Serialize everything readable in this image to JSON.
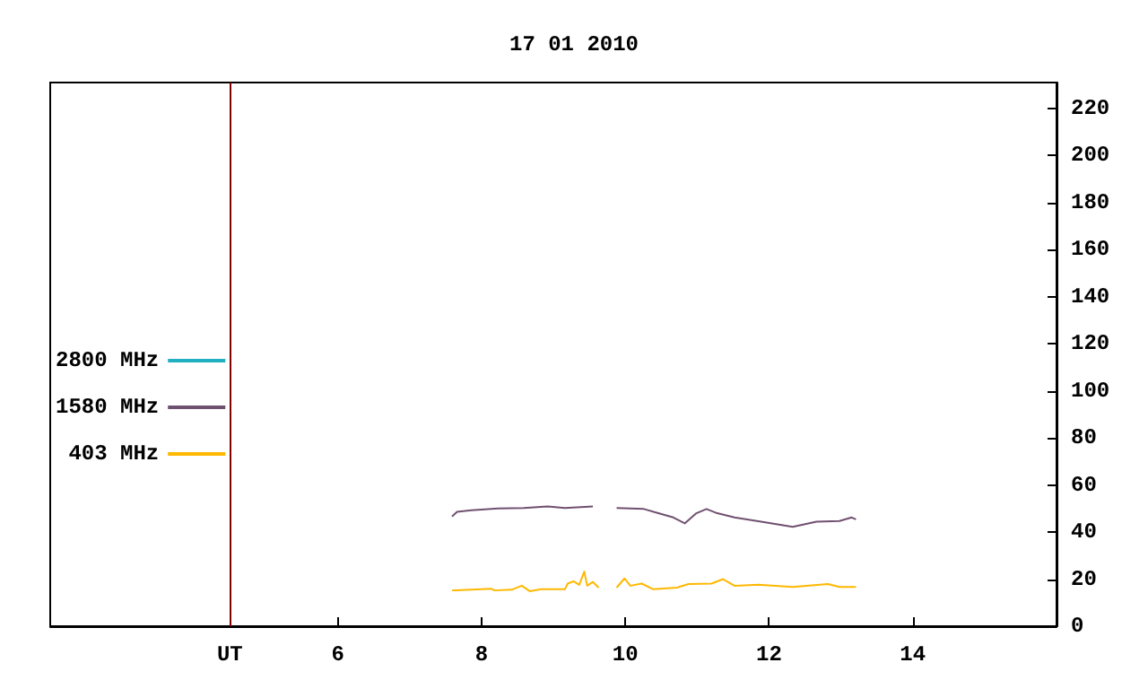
{
  "chart_data": {
    "type": "line",
    "title": "17 01 2010",
    "xlim": [
      2,
      16
    ],
    "xticks": [
      {
        "value": 4.5,
        "label": "UT"
      },
      6,
      8,
      10,
      12,
      14
    ],
    "ylim": [
      0,
      231
    ],
    "yticks": [
      0,
      20,
      40,
      60,
      80,
      100,
      120,
      140,
      160,
      180,
      200,
      220
    ],
    "grid": false,
    "legend": "left",
    "marker": "none",
    "line_style": "solid",
    "ref_lines": [
      {
        "axis": "x",
        "value": 4.5,
        "color": "#800000"
      }
    ],
    "series": [
      {
        "name": "2800 MHz",
        "color": "#20b0c0"
      },
      {
        "name": "1580 MHz",
        "color": "#705070",
        "x": [
          7.59,
          7.66,
          7.86,
          8.23,
          8.59,
          8.92,
          9.16,
          9.55,
          9.7,
          9.88,
          10.26,
          10.46,
          10.67,
          10.83,
          10.99,
          11.13,
          11.28,
          11.52,
          11.93,
          12.33,
          12.66,
          12.98,
          13.15,
          13.21
        ],
        "values": [
          46.6,
          48.6,
          49.3,
          50.0,
          50.2,
          50.9,
          50.2,
          50.9,
          null,
          50.2,
          49.8,
          48.0,
          46.2,
          43.7,
          48.0,
          49.8,
          48.0,
          46.2,
          44.2,
          42.2,
          44.4,
          44.7,
          46.2,
          45.4
        ]
      },
      {
        "name": "403 MHz",
        "color": "#ffb800",
        "x": [
          7.59,
          8.14,
          8.18,
          8.42,
          8.56,
          8.67,
          8.83,
          9.16,
          9.2,
          9.28,
          9.36,
          9.43,
          9.47,
          9.55,
          9.63,
          9.75,
          9.88,
          9.99,
          10.07,
          10.23,
          10.39,
          10.72,
          10.88,
          11.2,
          11.36,
          11.52,
          11.85,
          12.33,
          12.82,
          12.98,
          13.21
        ],
        "values": [
          15.2,
          15.9,
          15.2,
          15.5,
          17.2,
          14.9,
          15.7,
          15.7,
          18.1,
          19.1,
          17.6,
          23.2,
          17.2,
          18.8,
          16.4,
          null,
          16.4,
          20.3,
          17.2,
          18.1,
          15.7,
          16.4,
          17.9,
          18.1,
          20.0,
          17.2,
          17.6,
          16.7,
          17.9,
          16.7,
          16.7
        ]
      }
    ]
  }
}
